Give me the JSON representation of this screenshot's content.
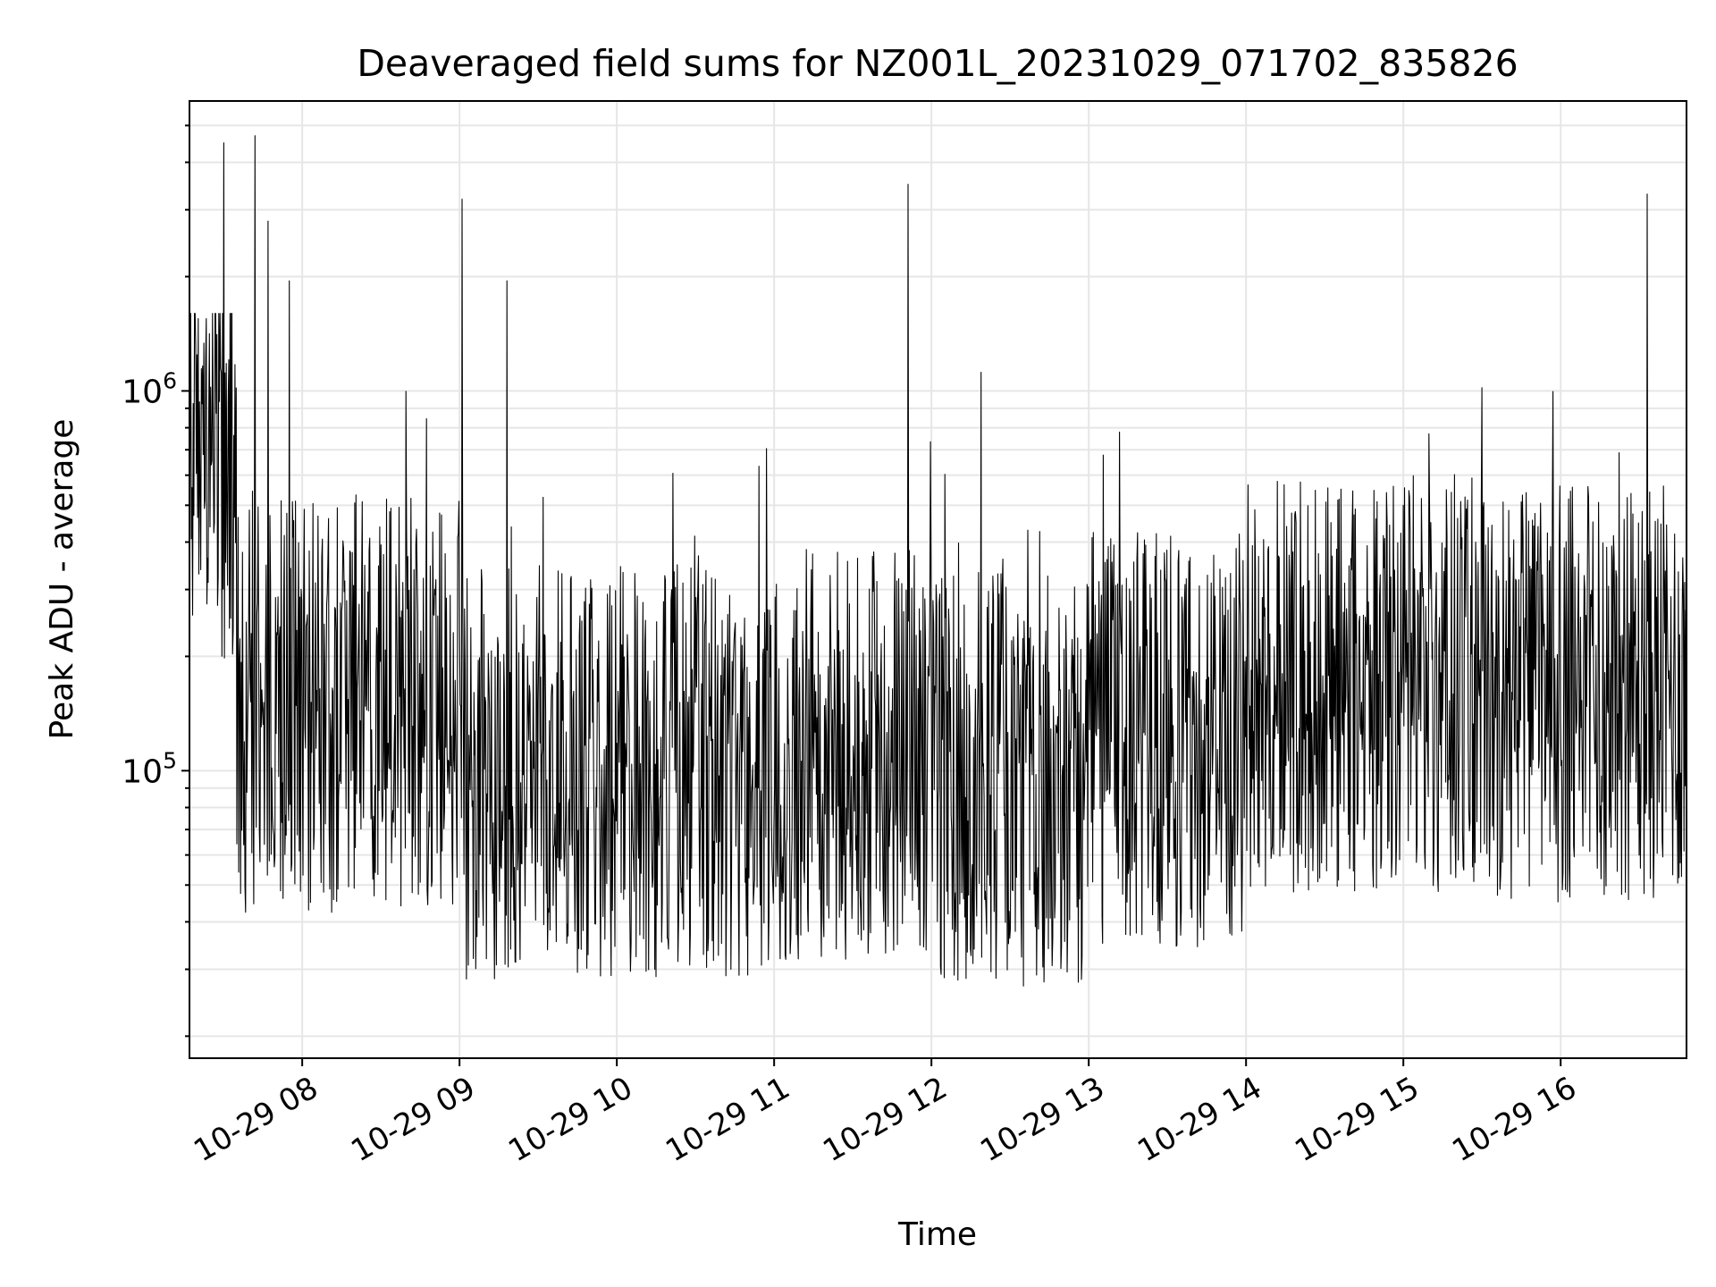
{
  "chart_data": {
    "type": "line",
    "title": "Deaveraged field sums for NZ001L_20231029_071702_835826",
    "xlabel": "Time",
    "ylabel": "Peak ADU - average",
    "yscale": "log",
    "grid": true,
    "line_color": "#000000",
    "grid_color": "#e6e6e6",
    "xlim": [
      "2023-10-29 07:17",
      "2023-10-29 16:48"
    ],
    "ylim": [
      17500,
      5800000
    ],
    "x_tick_labels": [
      "10-29 08",
      "10-29 09",
      "10-29 10",
      "10-29 11",
      "10-29 12",
      "10-29 13",
      "10-29 14",
      "10-29 15",
      "10-29 16"
    ],
    "y_tick_labels": [
      {
        "base": "10",
        "exp": "5",
        "value": 100000
      },
      {
        "base": "10",
        "exp": "6",
        "value": 1000000
      }
    ],
    "series": [
      {
        "x_start": "2023-10-29 07:17",
        "x_end": "2023-10-29 16:48",
        "peaks": [
          {
            "x": "2023-10-29 07:30",
            "y": 4500000
          },
          {
            "x": "2023-10-29 07:42",
            "y": 4700000
          },
          {
            "x": "2023-10-29 07:47",
            "y": 2800000
          },
          {
            "x": "2023-10-29 07:55",
            "y": 1950000
          },
          {
            "x": "2023-10-29 09:01",
            "y": 3200000
          },
          {
            "x": "2023-10-29 09:18",
            "y": 1950000
          },
          {
            "x": "2023-10-29 11:51",
            "y": 3500000
          },
          {
            "x": "2023-10-29 12:19",
            "y": 1120000
          },
          {
            "x": "2023-10-29 15:30",
            "y": 1020000
          },
          {
            "x": "2023-10-29 16:33",
            "y": 3300000
          }
        ],
        "segments": [
          {
            "from": "2023-10-29 07:17",
            "to": "2023-10-29 07:35",
            "median": 700000
          },
          {
            "from": "2023-10-29 07:35",
            "to": "2023-10-29 08:00",
            "median": 150000
          },
          {
            "from": "2023-10-29 08:00",
            "to": "2023-10-29 09:00",
            "median": 150000
          },
          {
            "from": "2023-10-29 09:00",
            "to": "2023-10-29 11:00",
            "median": 100000
          },
          {
            "from": "2023-10-29 11:00",
            "to": "2023-10-29 12:00",
            "median": 110000
          },
          {
            "from": "2023-10-29 12:00",
            "to": "2023-10-29 13:00",
            "median": 95000
          },
          {
            "from": "2023-10-29 13:00",
            "to": "2023-10-29 14:00",
            "median": 120000
          },
          {
            "from": "2023-10-29 14:00",
            "to": "2023-10-29 15:30",
            "median": 170000
          },
          {
            "from": "2023-10-29 15:30",
            "to": "2023-10-29 16:48",
            "median": 160000
          }
        ]
      }
    ]
  }
}
